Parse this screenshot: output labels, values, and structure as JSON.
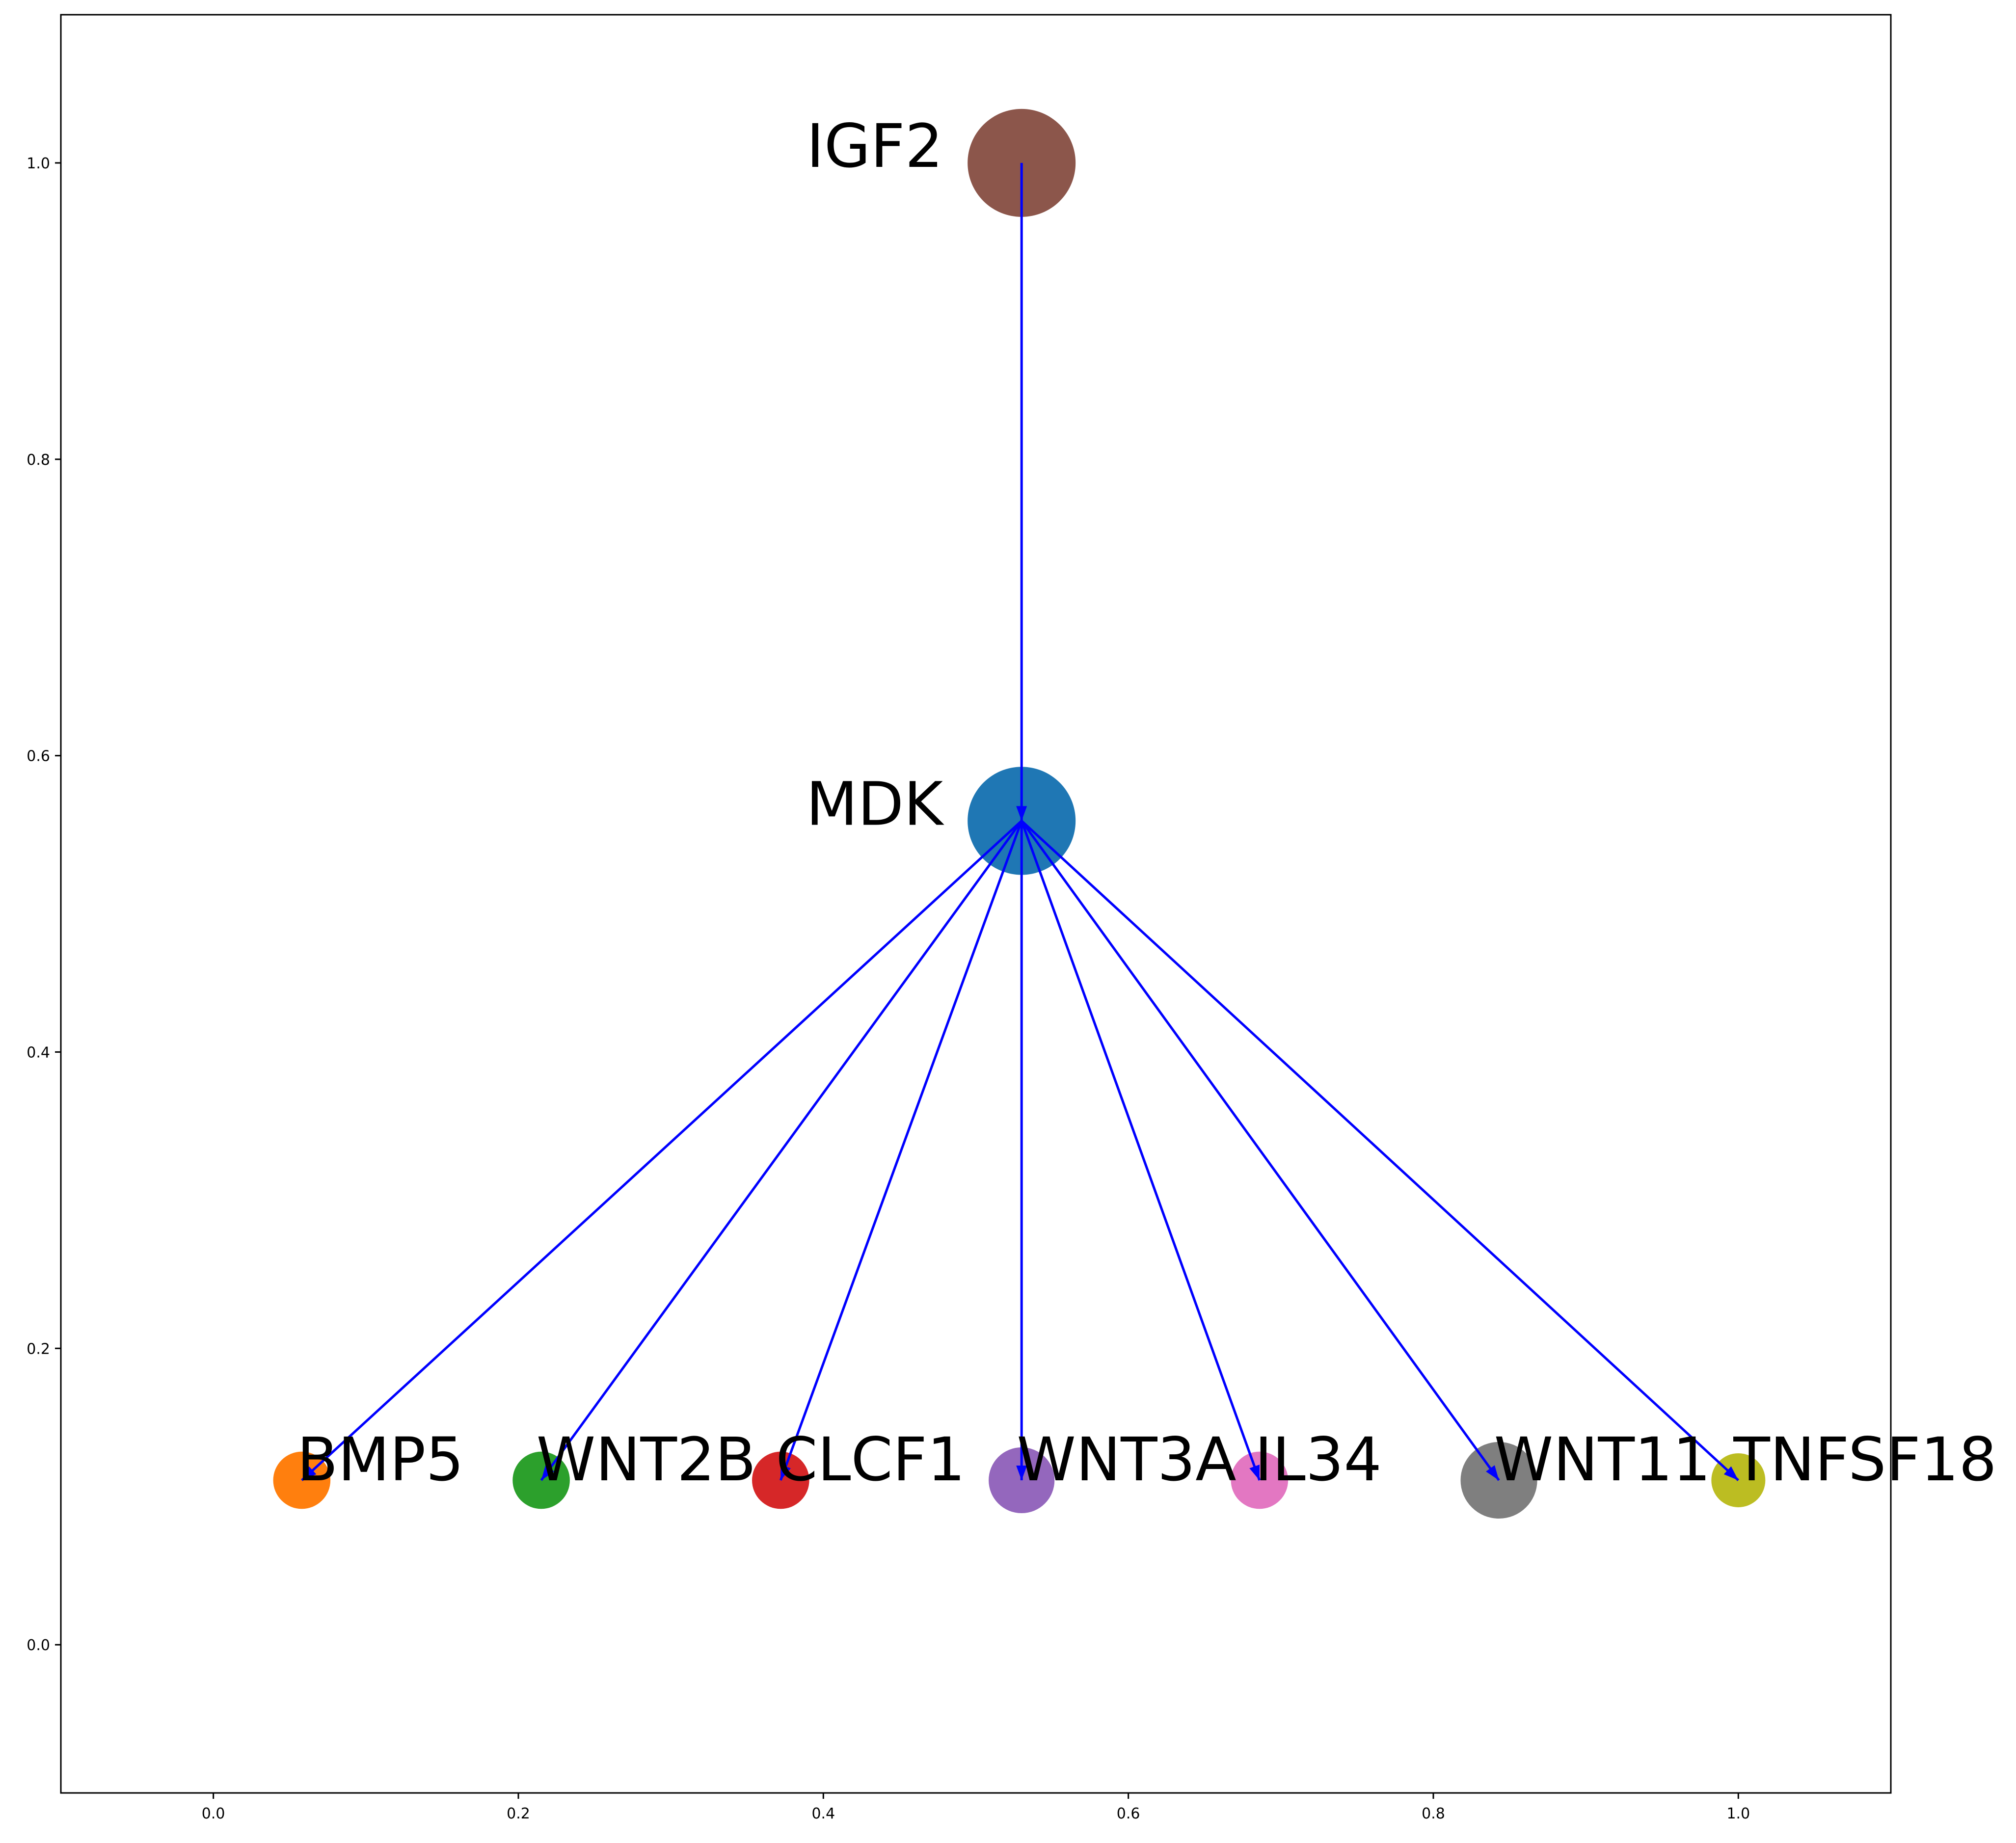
{
  "chart_data": {
    "type": "network",
    "title": "",
    "xlabel": "",
    "ylabel": "",
    "xlim": [
      -0.1,
      1.1
    ],
    "ylim": [
      -0.1,
      1.1
    ],
    "grid": false,
    "x_ticks": [
      0.0,
      0.2,
      0.4,
      0.6,
      0.8,
      1.0
    ],
    "y_ticks": [
      0.0,
      0.2,
      0.4,
      0.6,
      0.8,
      1.0
    ],
    "x_tick_labels": [
      "0.0",
      "0.2",
      "0.4",
      "0.6",
      "0.8",
      "1.0"
    ],
    "y_tick_labels": [
      "0.0",
      "0.2",
      "0.4",
      "0.6",
      "0.8",
      "1.0"
    ],
    "edge_color": "#0000ff",
    "nodes": [
      {
        "id": "IGF2",
        "label": "IGF2",
        "x": 0.53,
        "y": 1.0,
        "size": 1.0,
        "color": "#8c564b",
        "label_anchor": "end"
      },
      {
        "id": "MDK",
        "label": "MDK",
        "x": 0.53,
        "y": 0.556,
        "size": 1.0,
        "color": "#1f77b4",
        "label_anchor": "end"
      },
      {
        "id": "BMP5",
        "label": "BMP5",
        "x": 0.058,
        "y": 0.111,
        "size": 0.53,
        "color": "#ff7f0e",
        "label_anchor": "start"
      },
      {
        "id": "WNT2B",
        "label": "WNT2B",
        "x": 0.215,
        "y": 0.111,
        "size": 0.53,
        "color": "#2ca02c",
        "label_anchor": "start"
      },
      {
        "id": "CLCF1",
        "label": "CLCF1",
        "x": 0.372,
        "y": 0.111,
        "size": 0.53,
        "color": "#d62728",
        "label_anchor": "start"
      },
      {
        "id": "WNT3A",
        "label": "WNT3A",
        "x": 0.53,
        "y": 0.111,
        "size": 0.61,
        "color": "#9467bd",
        "label_anchor": "start"
      },
      {
        "id": "IL34",
        "label": "IL34",
        "x": 0.686,
        "y": 0.111,
        "size": 0.53,
        "color": "#e377c2",
        "label_anchor": "start"
      },
      {
        "id": "WNT11",
        "label": "WNT11",
        "x": 0.843,
        "y": 0.111,
        "size": 0.71,
        "color": "#7f7f7f",
        "label_anchor": "start"
      },
      {
        "id": "TNFSF18",
        "label": "TNFSF18",
        "x": 1.0,
        "y": 0.111,
        "size": 0.5,
        "color": "#bcbd22",
        "label_anchor": "start"
      }
    ],
    "edges": [
      {
        "source": "IGF2",
        "target": "MDK"
      },
      {
        "source": "MDK",
        "target": "BMP5"
      },
      {
        "source": "MDK",
        "target": "WNT2B"
      },
      {
        "source": "MDK",
        "target": "CLCF1"
      },
      {
        "source": "MDK",
        "target": "WNT3A"
      },
      {
        "source": "MDK",
        "target": "IL34"
      },
      {
        "source": "MDK",
        "target": "WNT11"
      },
      {
        "source": "MDK",
        "target": "TNFSF18"
      }
    ]
  }
}
